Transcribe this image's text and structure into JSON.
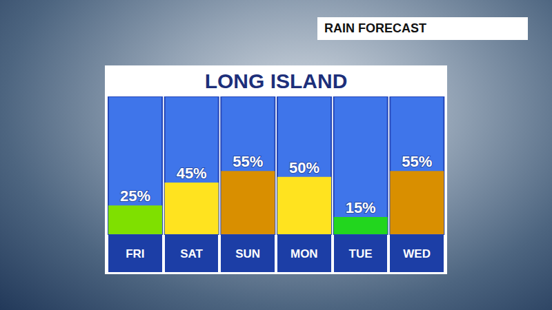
{
  "chart_data": {
    "type": "bar",
    "title": "LONG ISLAND",
    "subtitle": "RAIN FORECAST",
    "categories": [
      "FRI",
      "SAT",
      "SUN",
      "MON",
      "TUE",
      "WED"
    ],
    "values": [
      25,
      45,
      55,
      50,
      15,
      55
    ],
    "value_labels": [
      "25%",
      "45%",
      "55%",
      "50%",
      "15%",
      "55%"
    ],
    "colors": [
      "#7fe000",
      "#ffe31f",
      "#d98f00",
      "#ffe31f",
      "#22d61e",
      "#d98f00"
    ],
    "ylim": [
      0,
      120
    ],
    "data_labels": true,
    "tick_labels": "x"
  }
}
